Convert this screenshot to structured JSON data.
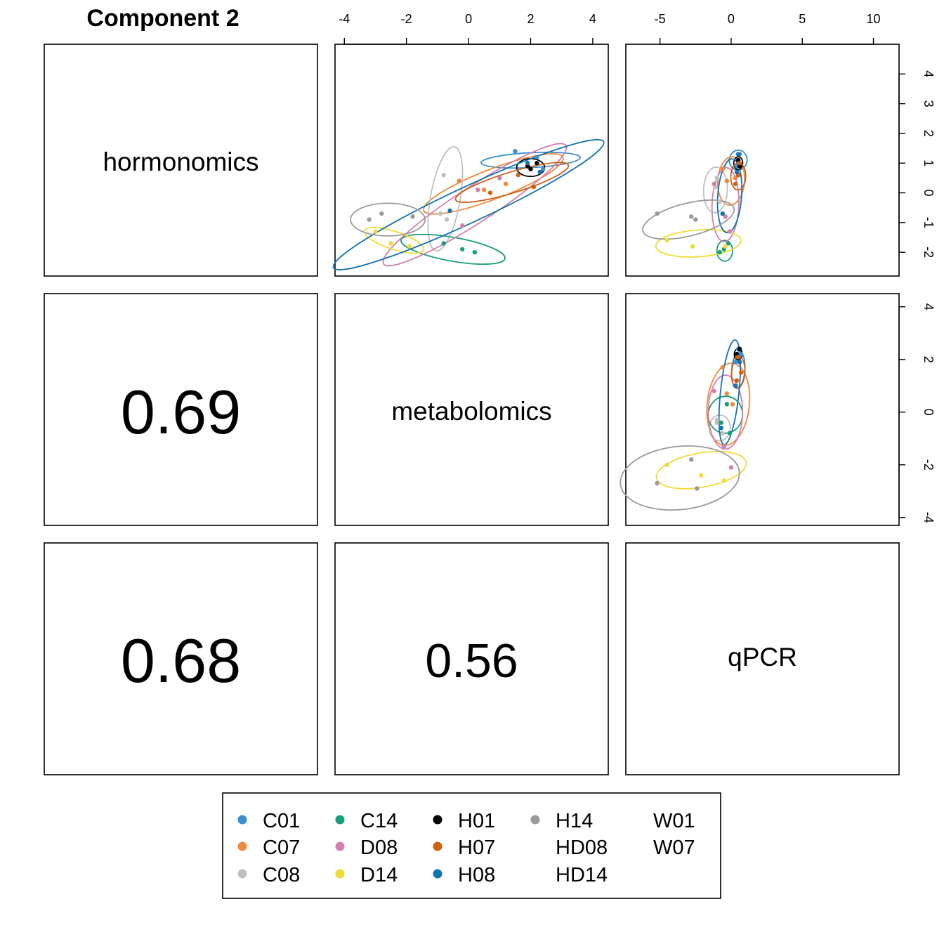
{
  "title": "Component 2",
  "variables": [
    "hormonomics",
    "metabolomics",
    "qPCR"
  ],
  "correlations": {
    "metabolomics_hormonomics": "0.69",
    "qPCR_hormonomics": "0.68",
    "qPCR_metabolomics": "0.56"
  },
  "legend": [
    {
      "label": "C01",
      "color": "#3a8fd0",
      "marker": true
    },
    {
      "label": "C07",
      "color": "#f0883c",
      "marker": true
    },
    {
      "label": "C08",
      "color": "#c0c0c0",
      "marker": true
    },
    {
      "label": "C14",
      "color": "#179e7a",
      "marker": true
    },
    {
      "label": "D08",
      "color": "#d27faf",
      "marker": true
    },
    {
      "label": "D14",
      "color": "#eedc37",
      "marker": true
    },
    {
      "label": "H01",
      "color": "#000000",
      "marker": true
    },
    {
      "label": "H07",
      "color": "#d16013",
      "marker": true
    },
    {
      "label": "H08",
      "color": "#1272b2",
      "marker": true
    },
    {
      "label": "H14",
      "color": "#9a9a9a",
      "marker": true
    },
    {
      "label": "HD08",
      "color": "",
      "marker": false
    },
    {
      "label": "HD14",
      "color": "",
      "marker": false
    },
    {
      "label": "W01",
      "color": "",
      "marker": false
    },
    {
      "label": "W07",
      "color": "",
      "marker": false
    }
  ],
  "axes": {
    "top_metabolomics_ticks": [
      "-4",
      "-2",
      "0",
      "2",
      "4"
    ],
    "top_qPCR_ticks": [
      "-5",
      "0",
      "5",
      "10"
    ],
    "right_hormonomics_ticks": [
      "-2",
      "-1",
      "0",
      "1",
      "2",
      "3",
      "4"
    ],
    "right_metabolomics_ticks": [
      "-4",
      "-2",
      "0",
      "2",
      "4"
    ]
  },
  "chart_data": {
    "type": "scatter",
    "title": "Component 2",
    "layout": "pairs",
    "ranges": {
      "hormonomics": [
        -2.8,
        5
      ],
      "metabolomics": [
        -4.3,
        4.5
      ],
      "qPCR": [
        -7.4,
        11.8
      ]
    },
    "panels": [
      {
        "x": "metabolomics",
        "y": "hormonomics",
        "points": [
          {
            "group": "C01",
            "x": 1.5,
            "y": 1.4
          },
          {
            "group": "C01",
            "x": 2.2,
            "y": 1.2
          },
          {
            "group": "C01",
            "x": 2.4,
            "y": 0.8
          },
          {
            "group": "C07",
            "x": -0.3,
            "y": 0.4
          },
          {
            "group": "C07",
            "x": 0.5,
            "y": 0.1
          },
          {
            "group": "C07",
            "x": 1.2,
            "y": 0.3
          },
          {
            "group": "C08",
            "x": -0.8,
            "y": 0.6
          },
          {
            "group": "C08",
            "x": -0.9,
            "y": -0.7
          },
          {
            "group": "C08",
            "x": -0.7,
            "y": -0.9
          },
          {
            "group": "C14",
            "x": -0.8,
            "y": -1.7
          },
          {
            "group": "C14",
            "x": -0.2,
            "y": -1.9
          },
          {
            "group": "C14",
            "x": 0.2,
            "y": -2.0
          },
          {
            "group": "D08",
            "x": -0.2,
            "y": -1.1
          },
          {
            "group": "D08",
            "x": 0.3,
            "y": 0.1
          },
          {
            "group": "D08",
            "x": 1.0,
            "y": 0.5
          },
          {
            "group": "D14",
            "x": -3.0,
            "y": -1.3
          },
          {
            "group": "D14",
            "x": -2.5,
            "y": -1.7
          },
          {
            "group": "D14",
            "x": -1.9,
            "y": -1.8
          },
          {
            "group": "H01",
            "x": 1.9,
            "y": 0.9
          },
          {
            "group": "H01",
            "x": 2.2,
            "y": 1.0
          },
          {
            "group": "H01",
            "x": 2.0,
            "y": 0.8
          },
          {
            "group": "H07",
            "x": 0.7,
            "y": 0.0
          },
          {
            "group": "H07",
            "x": 1.6,
            "y": 0.6
          },
          {
            "group": "H07",
            "x": 2.1,
            "y": 0.2
          },
          {
            "group": "H08",
            "x": -0.6,
            "y": -0.6
          },
          {
            "group": "H08",
            "x": 1.9,
            "y": 1.0
          },
          {
            "group": "H08",
            "x": 2.3,
            "y": 0.7
          },
          {
            "group": "H14",
            "x": -2.8,
            "y": -0.7
          },
          {
            "group": "H14",
            "x": -3.2,
            "y": -0.9
          },
          {
            "group": "H14",
            "x": -1.8,
            "y": -0.8
          }
        ],
        "ellipses": [
          {
            "group": "C01",
            "cx": 2.0,
            "cy": 1.1,
            "rx": 1.6,
            "ry": 0.25,
            "angle": -3
          },
          {
            "group": "C07",
            "cx": 0.8,
            "cy": 0.3,
            "rx": 2.4,
            "ry": 0.5,
            "angle": -21
          },
          {
            "group": "C08",
            "cx": -0.75,
            "cy": -0.2,
            "rx": 1.7,
            "ry": 0.5,
            "angle": -80
          },
          {
            "group": "C14",
            "cx": -0.5,
            "cy": -1.9,
            "rx": 1.7,
            "ry": 0.4,
            "angle": 10
          },
          {
            "group": "D08",
            "cx": 0.2,
            "cy": -0.4,
            "rx": 3.5,
            "ry": 0.6,
            "angle": -33
          },
          {
            "group": "D14",
            "cx": -2.4,
            "cy": -1.6,
            "rx": 1.0,
            "ry": 0.3,
            "angle": 18
          },
          {
            "group": "H01",
            "cx": 2.0,
            "cy": 0.85,
            "rx": 0.45,
            "ry": 0.3,
            "angle": 0
          },
          {
            "group": "H07",
            "cx": 1.4,
            "cy": 0.35,
            "rx": 1.9,
            "ry": 0.35,
            "angle": -17
          },
          {
            "group": "H08",
            "cx": 0.0,
            "cy": -0.4,
            "rx": 4.8,
            "ry": 0.6,
            "angle": -25
          },
          {
            "group": "H14",
            "cx": -2.6,
            "cy": -0.9,
            "rx": 1.2,
            "ry": 0.55,
            "angle": 0
          }
        ]
      },
      {
        "x": "qPCR",
        "y": "hormonomics",
        "points": [
          {
            "group": "C01",
            "x": 0.6,
            "y": 1.3
          },
          {
            "group": "C01",
            "x": 0.4,
            "y": 0.9
          },
          {
            "group": "C01",
            "x": 0.5,
            "y": 1.1
          },
          {
            "group": "C07",
            "x": -0.6,
            "y": 0.8
          },
          {
            "group": "C07",
            "x": 0.3,
            "y": 0.5
          },
          {
            "group": "C07",
            "x": -0.3,
            "y": 0.4
          },
          {
            "group": "C08",
            "x": -1.0,
            "y": 0.5
          },
          {
            "group": "C08",
            "x": -0.8,
            "y": -0.3
          },
          {
            "group": "C08",
            "x": -1.1,
            "y": 0.2
          },
          {
            "group": "C14",
            "x": -0.8,
            "y": -2.0
          },
          {
            "group": "C14",
            "x": -0.2,
            "y": -1.7
          },
          {
            "group": "C14",
            "x": -0.5,
            "y": -1.9
          },
          {
            "group": "D08",
            "x": -1.2,
            "y": 0.3
          },
          {
            "group": "D08",
            "x": -0.4,
            "y": -0.8
          },
          {
            "group": "D08",
            "x": -0.1,
            "y": -1.3
          },
          {
            "group": "D14",
            "x": -4.5,
            "y": -1.6
          },
          {
            "group": "D14",
            "x": -2.7,
            "y": -1.8
          },
          {
            "group": "D14",
            "x": -0.4,
            "y": -1.8
          },
          {
            "group": "H01",
            "x": 0.5,
            "y": 1.1
          },
          {
            "group": "H01",
            "x": 0.6,
            "y": 0.9
          },
          {
            "group": "H01",
            "x": 0.5,
            "y": 0.6
          },
          {
            "group": "H07",
            "x": 0.3,
            "y": 0.3
          },
          {
            "group": "H07",
            "x": 0.5,
            "y": 0.6
          },
          {
            "group": "H07",
            "x": 0.6,
            "y": 1.0
          },
          {
            "group": "H08",
            "x": -0.6,
            "y": -0.7
          },
          {
            "group": "H08",
            "x": 0.4,
            "y": 0.7
          },
          {
            "group": "H08",
            "x": 0.5,
            "y": 1.3
          },
          {
            "group": "H14",
            "x": -5.2,
            "y": -0.7
          },
          {
            "group": "H14",
            "x": -2.8,
            "y": -0.8
          },
          {
            "group": "H14",
            "x": -2.5,
            "y": -0.9
          }
        ],
        "ellipses": [
          {
            "group": "C01",
            "cx": 0.5,
            "cy": 1.1,
            "rx": 0.7,
            "ry": 0.3,
            "angle": -85
          },
          {
            "group": "C07",
            "cx": 0.0,
            "cy": 0.4,
            "rx": 1.7,
            "ry": 0.45,
            "angle": -86
          },
          {
            "group": "C08",
            "cx": -1.1,
            "cy": 0.1,
            "rx": 1.6,
            "ry": 0.4,
            "angle": -88
          },
          {
            "group": "C14",
            "cx": -0.45,
            "cy": -1.95,
            "rx": 0.55,
            "ry": 0.35,
            "angle": 0
          },
          {
            "group": "D08",
            "cx": -0.4,
            "cy": -0.4,
            "rx": 2.6,
            "ry": 0.45,
            "angle": -88
          },
          {
            "group": "D14",
            "cx": -2.3,
            "cy": -1.7,
            "rx": 3.0,
            "ry": 0.45,
            "angle": -4
          },
          {
            "group": "H01",
            "cx": 0.5,
            "cy": 1.0,
            "rx": 0.45,
            "ry": 0.15,
            "angle": -88
          },
          {
            "group": "H07",
            "cx": 0.5,
            "cy": 0.55,
            "rx": 0.95,
            "ry": 0.25,
            "angle": -88
          },
          {
            "group": "H08",
            "cx": -0.1,
            "cy": -0.1,
            "rx": 2.6,
            "ry": 0.4,
            "angle": -86
          },
          {
            "group": "H14",
            "cx": -3.0,
            "cy": -0.9,
            "rx": 3.3,
            "ry": 0.55,
            "angle": -14
          }
        ]
      },
      {
        "x": "qPCR",
        "y": "metabolomics",
        "points": [
          {
            "group": "C01",
            "x": 0.7,
            "y": 2.2
          },
          {
            "group": "C01",
            "x": 0.5,
            "y": 2.4
          },
          {
            "group": "C01",
            "x": 0.3,
            "y": 1.9
          },
          {
            "group": "C07",
            "x": -0.3,
            "y": 0.7
          },
          {
            "group": "C07",
            "x": 0.1,
            "y": 0.3
          },
          {
            "group": "C07",
            "x": -0.6,
            "y": 1.7
          },
          {
            "group": "C08",
            "x": -1.0,
            "y": -0.3
          },
          {
            "group": "C08",
            "x": -1.0,
            "y": -0.4
          },
          {
            "group": "C08",
            "x": -0.6,
            "y": -0.8
          },
          {
            "group": "C14",
            "x": -0.7,
            "y": -0.4
          },
          {
            "group": "C14",
            "x": -0.3,
            "y": 0.3
          },
          {
            "group": "C14",
            "x": -0.1,
            "y": -0.8
          },
          {
            "group": "D08",
            "x": -1.2,
            "y": 0.8
          },
          {
            "group": "D08",
            "x": -0.5,
            "y": -1.3
          },
          {
            "group": "D08",
            "x": 0.0,
            "y": -2.1
          },
          {
            "group": "D14",
            "x": -4.5,
            "y": -2.0
          },
          {
            "group": "D14",
            "x": -2.1,
            "y": -2.4
          },
          {
            "group": "D14",
            "x": -0.5,
            "y": -2.6
          },
          {
            "group": "H01",
            "x": 0.5,
            "y": 2.1
          },
          {
            "group": "H01",
            "x": 0.6,
            "y": 2.4
          },
          {
            "group": "H01",
            "x": 0.4,
            "y": 2.2
          },
          {
            "group": "H07",
            "x": 0.4,
            "y": 1.2
          },
          {
            "group": "H07",
            "x": 0.7,
            "y": 1.5
          },
          {
            "group": "H07",
            "x": 0.5,
            "y": 2.1
          },
          {
            "group": "H08",
            "x": -0.7,
            "y": -0.6
          },
          {
            "group": "H08",
            "x": 0.3,
            "y": 1.0
          },
          {
            "group": "H08",
            "x": 0.6,
            "y": 1.9
          },
          {
            "group": "H14",
            "x": -5.2,
            "y": -2.7
          },
          {
            "group": "H14",
            "x": -2.8,
            "y": -1.8
          },
          {
            "group": "H14",
            "x": -2.4,
            "y": -2.9
          }
        ],
        "ellipses": [
          {
            "group": "C01",
            "cx": 0.5,
            "cy": 1.6,
            "rx": 1.3,
            "ry": 0.25,
            "angle": -86
          },
          {
            "group": "C07",
            "cx": -0.2,
            "cy": 0.3,
            "rx": 2.9,
            "ry": 0.8,
            "angle": -84
          },
          {
            "group": "C08",
            "cx": -0.8,
            "cy": -0.6,
            "rx": 0.9,
            "ry": 0.4,
            "angle": -88
          },
          {
            "group": "C14",
            "cx": -0.4,
            "cy": -0.1,
            "rx": 1.3,
            "ry": 0.65,
            "angle": -84
          },
          {
            "group": "D08",
            "cx": -0.4,
            "cy": 0.0,
            "rx": 2.6,
            "ry": 0.65,
            "angle": -90
          },
          {
            "group": "D14",
            "cx": -2.1,
            "cy": -2.2,
            "rx": 3.2,
            "ry": 0.65,
            "angle": -10
          },
          {
            "group": "H01",
            "cx": 0.5,
            "cy": 2.2,
            "rx": 0.4,
            "ry": 0.15,
            "angle": -88
          },
          {
            "group": "H07",
            "cx": 0.5,
            "cy": 1.5,
            "rx": 1.1,
            "ry": 0.25,
            "angle": -86
          },
          {
            "group": "H08",
            "cx": -0.1,
            "cy": 0.75,
            "rx": 3.7,
            "ry": 0.35,
            "angle": -84
          },
          {
            "group": "H14",
            "cx": -3.6,
            "cy": -2.5,
            "rx": 4.2,
            "ry": 1.2,
            "angle": -6
          }
        ]
      }
    ]
  }
}
